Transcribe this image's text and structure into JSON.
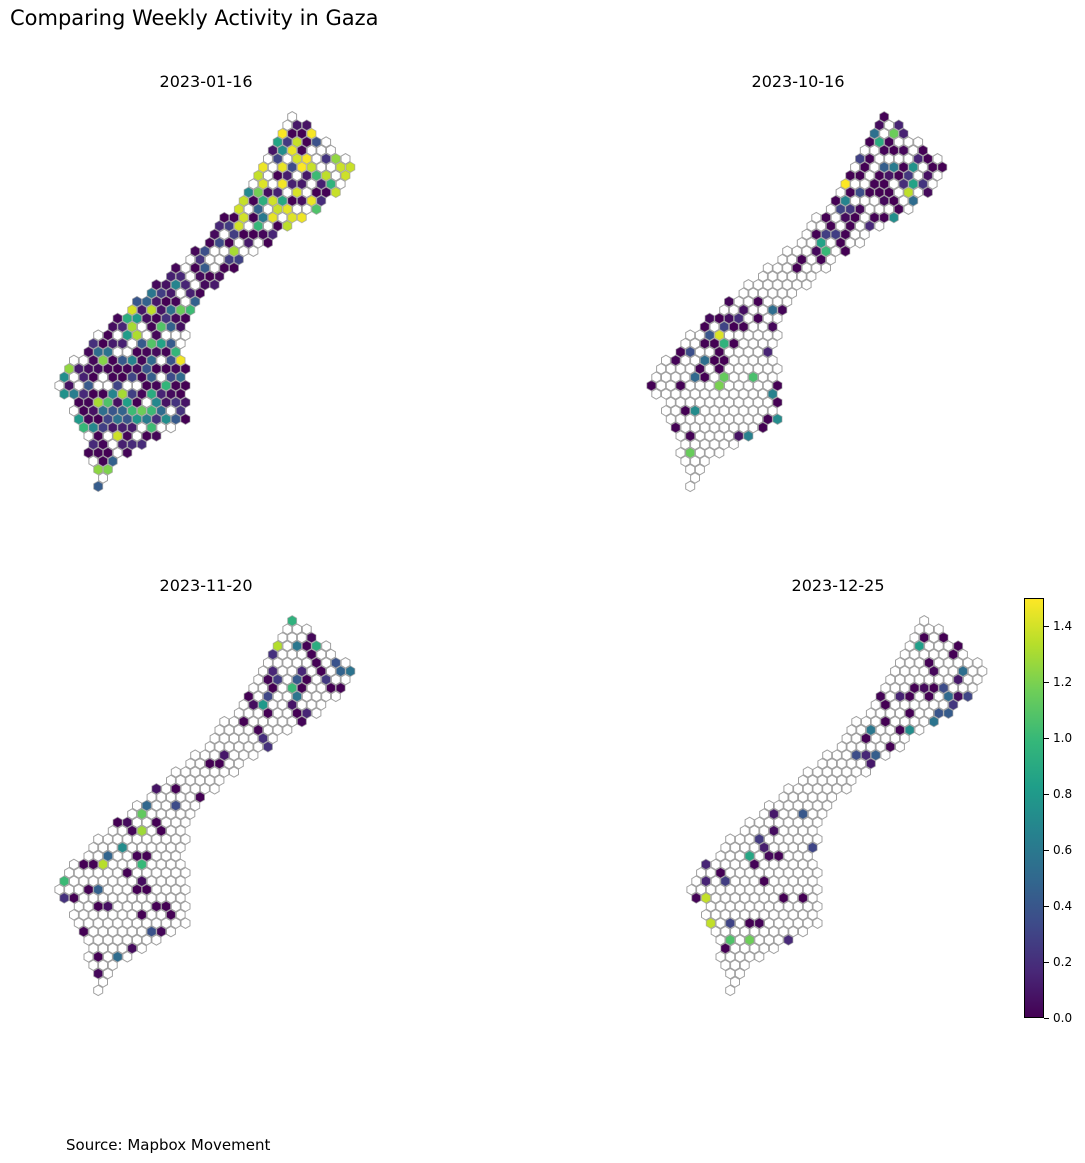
{
  "title": "Comparing Weekly Activity in Gaza",
  "source": "Source: Mapbox Movement",
  "panels": [
    {
      "date": "2023-01-16"
    },
    {
      "date": "2023-10-16"
    },
    {
      "date": "2023-11-20"
    },
    {
      "date": "2023-12-25"
    }
  ],
  "colorbar": {
    "min": 0.0,
    "max": 1.5,
    "ticks": [
      "0.0",
      "0.2",
      "0.4",
      "0.6",
      "0.8",
      "1.0",
      "1.2",
      "1.4"
    ],
    "colormap": "viridis"
  },
  "colors": {
    "empty_hex_stroke": "#a0a0a0",
    "low": "#440154",
    "high": "#fde725"
  }
}
